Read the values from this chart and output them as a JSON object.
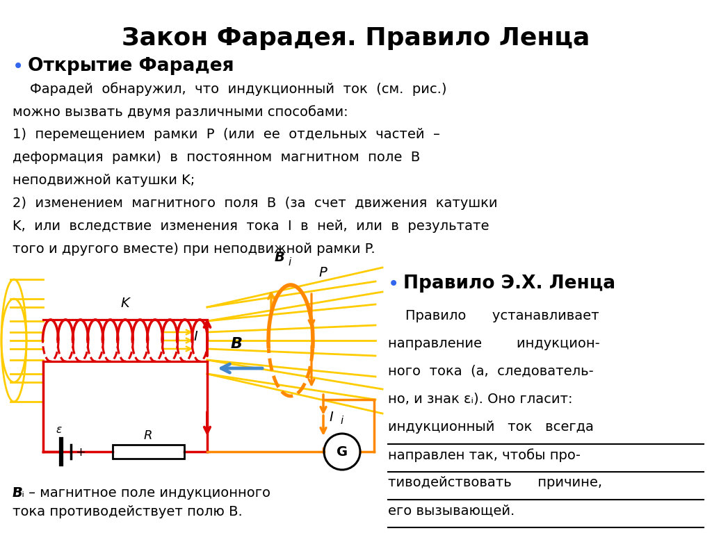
{
  "title": "Закон Фарадея. Правило Ленца",
  "bg_color": "#ffffff",
  "title_color": "#000000",
  "title_fontsize": 26,
  "bullet_color": "#3366ee",
  "coil_color": "#dd0000",
  "field_color": "#ffcc00",
  "ring_color": "#ff8800",
  "circuit_color": "#ff8800",
  "blue_arrow_color": "#4488cc",
  "body1_lines": [
    "    Фарадей  обнаружил,  что  индукционный  ток  (см.  рис.)",
    "можно вызвать двумя различными способами:",
    "1)  перемещением  рамки  P  (или  ее  отдельных  частей  –",
    "деформация  рамки)  в  постоянном  магнитном  поле  B",
    "неподвижной катушки K;",
    "2)  изменением  магнитного  поля  B  (за  счет  движения  катушки",
    "K,  или  вследствие  изменения  тока  I  в  ней,  или  в  результате",
    "того и другого вместе) при неподвижной рамки P."
  ],
  "body2_lines": [
    [
      "    Правило      устанавливает",
      false
    ],
    [
      "направление        индукцион-",
      false
    ],
    [
      "ного  тока  (а,  следователь-",
      false
    ],
    [
      "но, и знак εᵢ). Оно гласит:",
      false
    ],
    [
      "индукционный   ток   всегда",
      true
    ],
    [
      "направлен так, чтобы про-",
      true
    ],
    [
      "тиводействовать      причине,",
      true
    ],
    [
      "его вызывающей.",
      true
    ]
  ],
  "caption": "Bᵢ – магнитное поле индукционного\nтока противодействует полю B."
}
